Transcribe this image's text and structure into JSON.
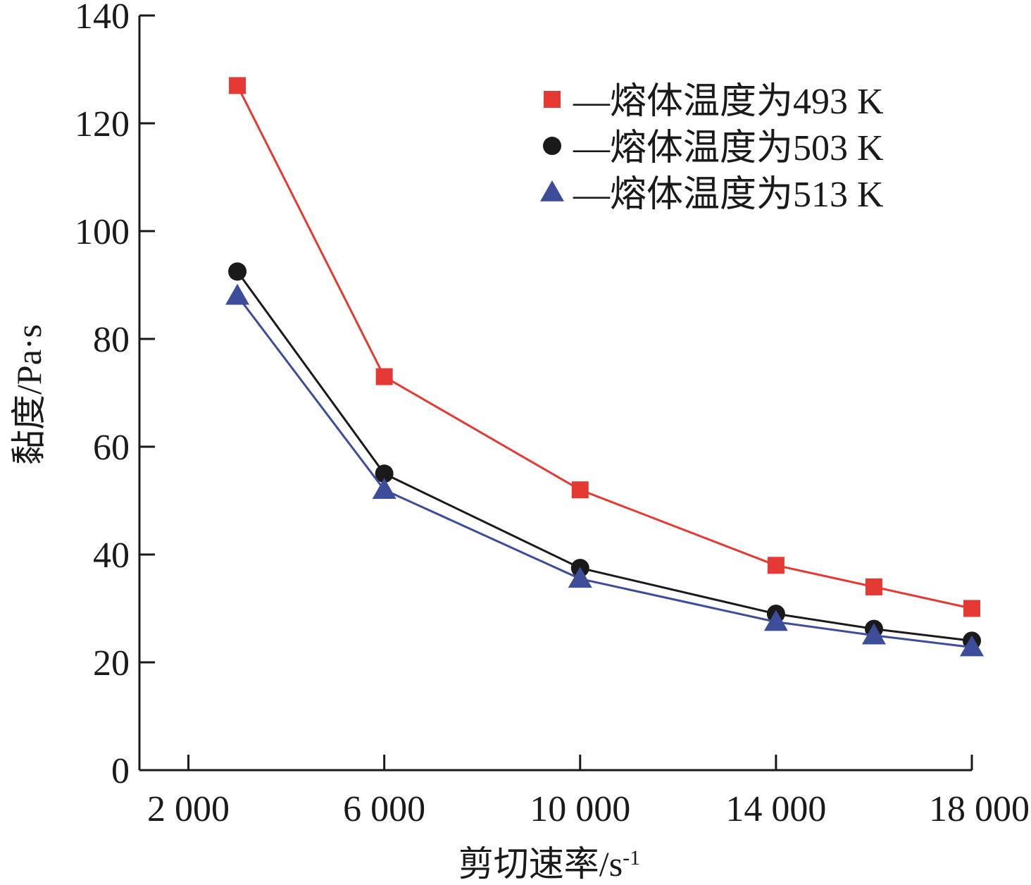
{
  "chart_data": {
    "type": "line",
    "title": "",
    "xlabel": "剪切速率/s",
    "xlabel_sup": "-1",
    "ylabel": "黏度/Pa·s",
    "xlim": [
      1000,
      18000
    ],
    "ylim": [
      0,
      140
    ],
    "xticks": [
      2000,
      6000,
      10000,
      14000,
      18000
    ],
    "xtick_labels": [
      "2 000",
      "6 000",
      "10 000",
      "14 000",
      "18 000"
    ],
    "yticks": [
      0,
      20,
      40,
      60,
      80,
      100,
      120,
      140
    ],
    "ytick_labels": [
      "0",
      "20",
      "40",
      "60",
      "80",
      "100",
      "120",
      "140"
    ],
    "grid": false,
    "legend_position": "top-right",
    "x": [
      3000,
      6000,
      10000,
      14000,
      16000,
      18000
    ],
    "series": [
      {
        "name": "—熔体温度为493 K",
        "marker": "square",
        "color": "#e53a34",
        "values": [
          127,
          73,
          52,
          38,
          34,
          30
        ]
      },
      {
        "name": "—熔体温度为503 K",
        "marker": "circle",
        "color": "#1a1a1a",
        "values": [
          92.5,
          55,
          37.5,
          29,
          26.2,
          24
        ]
      },
      {
        "name": "—熔体温度为513 K",
        "marker": "triangle",
        "color": "#3d4d9a",
        "values": [
          88,
          52,
          35.5,
          27.5,
          25,
          22.8
        ]
      }
    ]
  }
}
